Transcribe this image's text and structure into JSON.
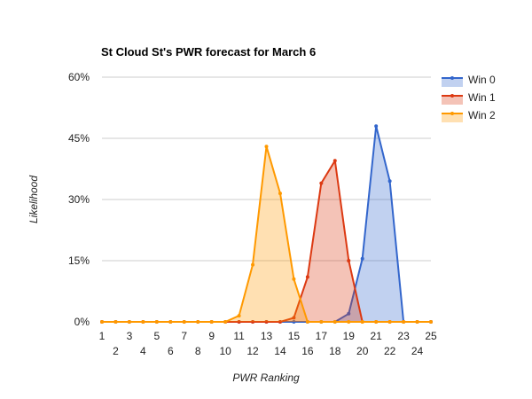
{
  "chart_data": {
    "type": "area",
    "title": "St Cloud St's PWR forecast for March 6",
    "xlabel": "PWR Ranking",
    "ylabel": "Likelihood",
    "x": [
      1,
      2,
      3,
      4,
      5,
      6,
      7,
      8,
      9,
      10,
      11,
      12,
      13,
      14,
      15,
      16,
      17,
      18,
      19,
      20,
      21,
      22,
      23,
      24,
      25
    ],
    "ylim": [
      0,
      60
    ],
    "yticks": [
      "0%",
      "15%",
      "30%",
      "45%",
      "60%"
    ],
    "ytick_values": [
      0,
      15,
      30,
      45,
      60
    ],
    "grid": true,
    "legend": "right",
    "series": [
      {
        "name": "Win 0",
        "color": "#3366cc",
        "values": [
          0,
          0,
          0,
          0,
          0,
          0,
          0,
          0,
          0,
          0,
          0,
          0,
          0,
          0,
          0,
          0,
          0,
          0,
          2,
          15.5,
          48,
          34.5,
          0,
          0,
          0
        ]
      },
      {
        "name": "Win 1",
        "color": "#dc3912",
        "values": [
          0,
          0,
          0,
          0,
          0,
          0,
          0,
          0,
          0,
          0,
          0,
          0,
          0,
          0,
          1,
          11,
          34,
          39.5,
          15,
          0,
          0,
          0,
          0,
          0,
          0
        ]
      },
      {
        "name": "Win 2",
        "color": "#ff9900",
        "values": [
          0,
          0,
          0,
          0,
          0,
          0,
          0,
          0,
          0,
          0,
          1.5,
          14,
          43,
          31.5,
          10.5,
          0,
          0,
          0,
          0,
          0,
          0,
          0,
          0,
          0,
          0
        ]
      }
    ]
  }
}
